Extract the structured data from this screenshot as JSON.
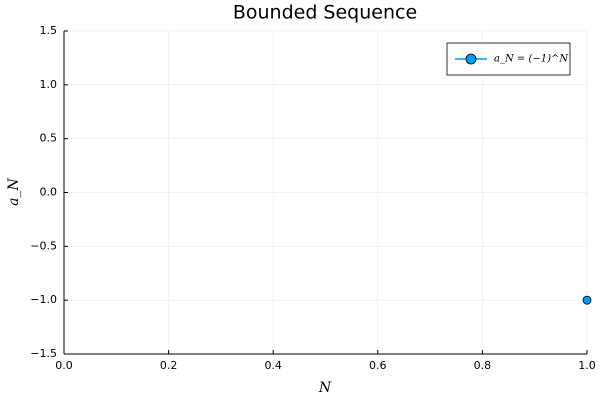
{
  "chart_data": {
    "type": "line",
    "title": "Bounded Sequence",
    "xlabel": "N",
    "ylabel": "a_N",
    "x": [
      1
    ],
    "series": [
      {
        "name": "a_N = (−1)^N",
        "color": "#009af9",
        "values": [
          -1
        ]
      }
    ],
    "xlim": [
      0,
      1
    ],
    "xticks": [
      {
        "value": 0,
        "label": "0.0"
      },
      0.2,
      0.4,
      0.6,
      0.8,
      {
        "value": 1,
        "label": "1.0"
      }
    ],
    "ylim": [
      -1.5,
      1.5
    ],
    "yticks": [
      {
        "value": -1.5,
        "label": "−1.5"
      },
      {
        "value": -1,
        "label": "−1.0"
      },
      {
        "value": -0.5,
        "label": "−0.5"
      },
      {
        "value": 0,
        "label": "0.0"
      },
      0.5,
      {
        "value": 1,
        "label": "1.0"
      },
      1.5
    ],
    "grid": true,
    "legend": "top-right",
    "marker": true
  }
}
